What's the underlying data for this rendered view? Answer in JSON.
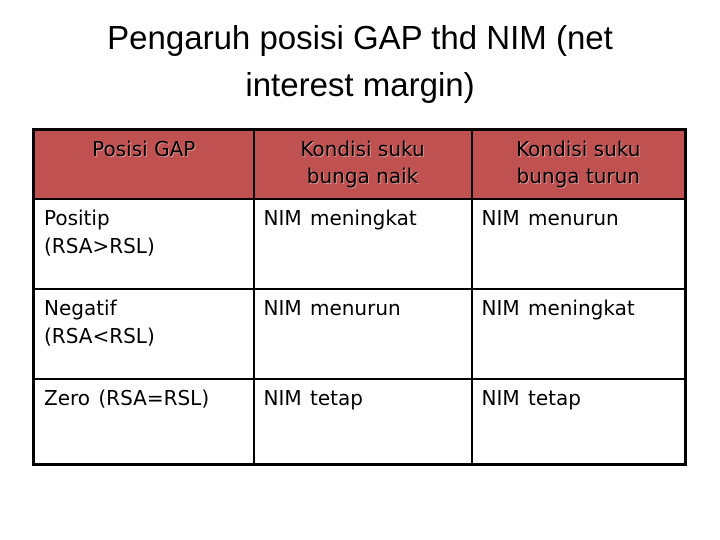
{
  "title": "Pengaruh posisi GAP thd NIM (net\ninterest margin)",
  "table": {
    "headers": [
      "Posisi GAP",
      "Kondisi suku\nbunga naik",
      "Kondisi suku\nbunga turun"
    ],
    "rows": [
      [
        "Positip\n(RSA>RSL)",
        "NIM meningkat",
        "NIM menurun"
      ],
      [
        "Negatif\n(RSA<RSL)",
        "NIM menurun",
        "NIM meningkat"
      ],
      [
        "Zero (RSA=RSL)",
        "NIM tetap",
        "NIM tetap"
      ]
    ]
  },
  "colors": {
    "header_bg": "#bf5150",
    "border": "#000000",
    "text": "#000000",
    "background": "#ffffff"
  }
}
